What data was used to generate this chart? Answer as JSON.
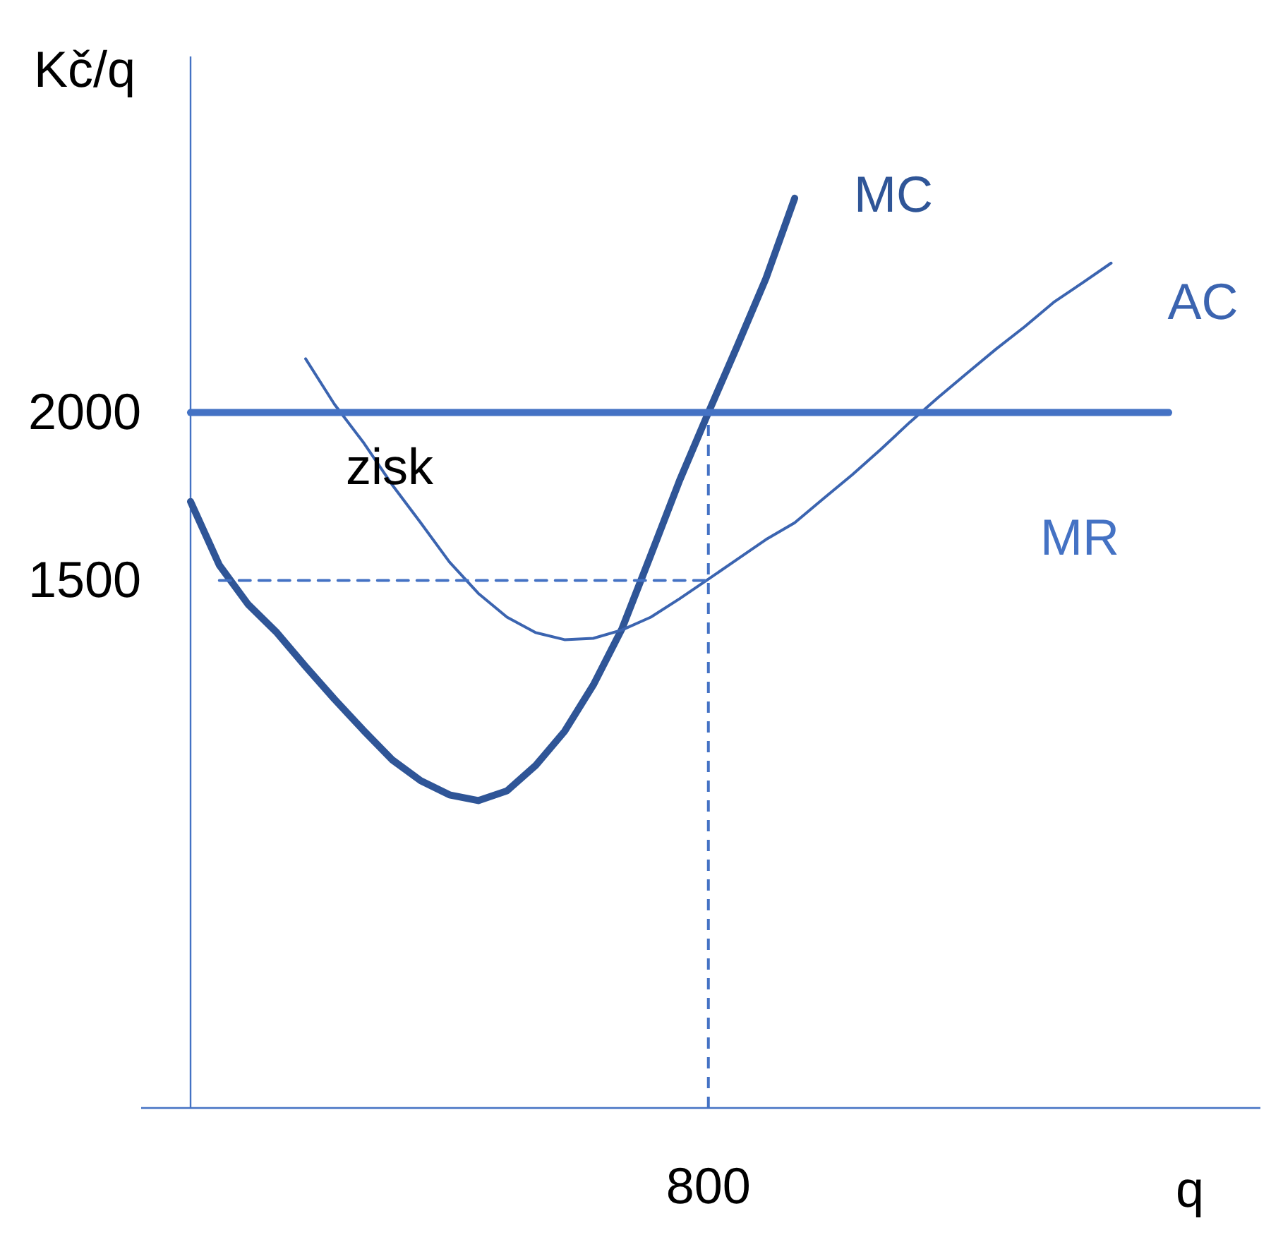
{
  "chart_data": {
    "type": "line",
    "xlabel": "q",
    "ylabel": "Kč/q",
    "categories": [
      null,
      null,
      null,
      null,
      null,
      null,
      null,
      null,
      null,
      null,
      null,
      null,
      null,
      null,
      null,
      null,
      null,
      null,
      "800",
      null,
      null,
      null,
      null,
      null,
      null,
      null,
      null,
      null,
      null,
      null,
      null,
      null,
      null,
      null,
      null
    ],
    "ylim": [
      -70,
      3060
    ],
    "yticks": [
      1500,
      2000
    ],
    "grid": false,
    "marker": "none",
    "annotations": [
      {
        "text": "zisk",
        "y": 1828
      }
    ],
    "ref_lines": [
      {
        "axis": "x",
        "value": "800",
        "color": "#4472c4",
        "line_style": "dashed"
      }
    ],
    "series": [
      {
        "name": "MC",
        "color": "#2f5597",
        "values": [
          1735,
          1546,
          1429,
          1345,
          1244,
          1147,
          1055,
          967,
          904,
          862,
          845,
          874,
          950,
          1051,
          1189,
          1357,
          1576,
          1798,
          2000,
          2197,
          2399,
          2638,
          null,
          null,
          null,
          null,
          null,
          null,
          null,
          null,
          null,
          null,
          null,
          null,
          null
        ]
      },
      {
        "name": "AC",
        "color": "#3b64b0",
        "values": [
          null,
          null,
          null,
          null,
          2160,
          2025,
          1912,
          1786,
          1672,
          1555,
          1462,
          1391,
          1345,
          1324,
          1328,
          1353,
          1391,
          1446,
          1504,
          1563,
          1622,
          1672,
          1744,
          1815,
          1891,
          1971,
          2046,
          2118,
          2189,
          2256,
          2328,
          2386,
          2445,
          null,
          null
        ]
      },
      {
        "name": "MR",
        "color": "#4472c4",
        "values": [
          2000,
          2000,
          2000,
          2000,
          2000,
          2000,
          2000,
          2000,
          2000,
          2000,
          2000,
          2000,
          2000,
          2000,
          2000,
          2000,
          2000,
          2000,
          2000,
          2000,
          2000,
          2000,
          2000,
          2000,
          2000,
          2000,
          2000,
          2000,
          2000,
          2000,
          2000,
          2000,
          2000,
          2000,
          2000
        ]
      },
      {
        "color": "#4472c4",
        "line_style": "dashed",
        "values": [
          null,
          1500,
          1500,
          1500,
          1500,
          1500,
          1500,
          1500,
          1500,
          1500,
          1500,
          1500,
          1500,
          1500,
          1500,
          1500,
          1500,
          1500,
          1500,
          null,
          null,
          null,
          null,
          null,
          null,
          null,
          null,
          null,
          null,
          null,
          null,
          null,
          null,
          null,
          null
        ]
      }
    ]
  }
}
